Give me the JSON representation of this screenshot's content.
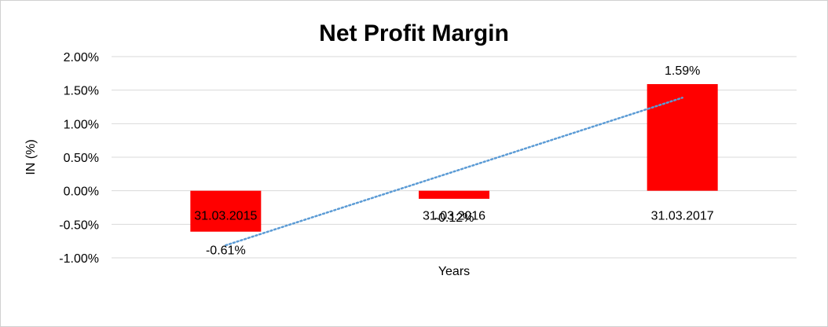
{
  "chart_data": {
    "type": "bar",
    "title": "Net Profit Margin",
    "xlabel": "Years",
    "ylabel": "IN (%)",
    "categories": [
      "31.03.2015",
      "31.03.2016",
      "31.03.2017"
    ],
    "values": [
      -0.61,
      -0.12,
      1.59
    ],
    "data_labels": [
      "-0.61%",
      "-0.12%",
      "1.59%"
    ],
    "y_ticks": [
      2.0,
      1.5,
      1.0,
      0.5,
      0.0,
      -0.5,
      -1.0
    ],
    "y_tick_labels": [
      "2.00%",
      "1.50%",
      "1.00%",
      "0.50%",
      "0.00%",
      "-0.50%",
      "-1.00%"
    ],
    "ylim": [
      -1.0,
      2.0
    ],
    "grid": true,
    "trendline": {
      "type": "linear",
      "style": "dotted"
    },
    "colors": {
      "bar": "#ff0000",
      "trendline": "#5b9bd5",
      "grid": "#d9d9d9"
    }
  }
}
